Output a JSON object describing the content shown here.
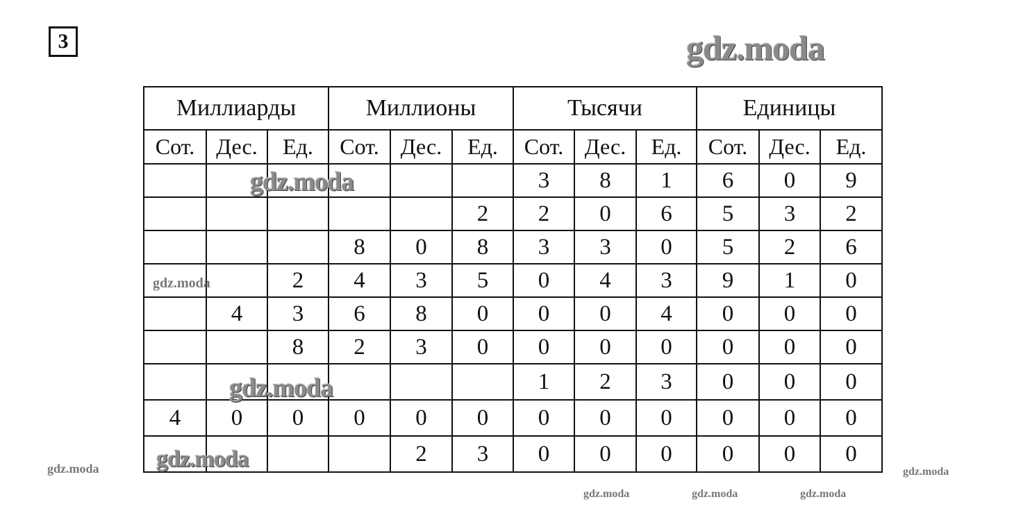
{
  "exercise_number": "3",
  "watermark": "gdz.moda",
  "table": {
    "groups": [
      "Миллиарды",
      "Миллионы",
      "Тысячи",
      "Единицы"
    ],
    "subheaders": [
      "Сот.",
      "Дес.",
      "Ед.",
      "Сот.",
      "Дес.",
      "Ед.",
      "Сот.",
      "Дес.",
      "Ед.",
      "Сот.",
      "Дес.",
      "Ед."
    ],
    "rows": [
      [
        "",
        "",
        "",
        "",
        "",
        "",
        "3",
        "8",
        "1",
        "6",
        "0",
        "9"
      ],
      [
        "",
        "",
        "",
        "",
        "",
        "2",
        "2",
        "0",
        "6",
        "5",
        "3",
        "2"
      ],
      [
        "",
        "",
        "",
        "8",
        "0",
        "8",
        "3",
        "3",
        "0",
        "5",
        "2",
        "6"
      ],
      [
        "",
        "",
        "2",
        "4",
        "3",
        "5",
        "0",
        "4",
        "3",
        "9",
        "1",
        "0"
      ],
      [
        "",
        "4",
        "3",
        "6",
        "8",
        "0",
        "0",
        "0",
        "4",
        "0",
        "0",
        "0"
      ],
      [
        "",
        "",
        "8",
        "2",
        "3",
        "0",
        "0",
        "0",
        "0",
        "0",
        "0",
        "0"
      ],
      [
        "",
        "",
        "",
        "",
        "",
        "",
        "1",
        "2",
        "3",
        "0",
        "0",
        "0"
      ],
      [
        "4",
        "0",
        "0",
        "0",
        "0",
        "0",
        "0",
        "0",
        "0",
        "0",
        "0",
        "0"
      ],
      [
        "",
        "",
        "",
        "",
        "2",
        "3",
        "0",
        "0",
        "0",
        "0",
        "0",
        "0"
      ]
    ]
  }
}
